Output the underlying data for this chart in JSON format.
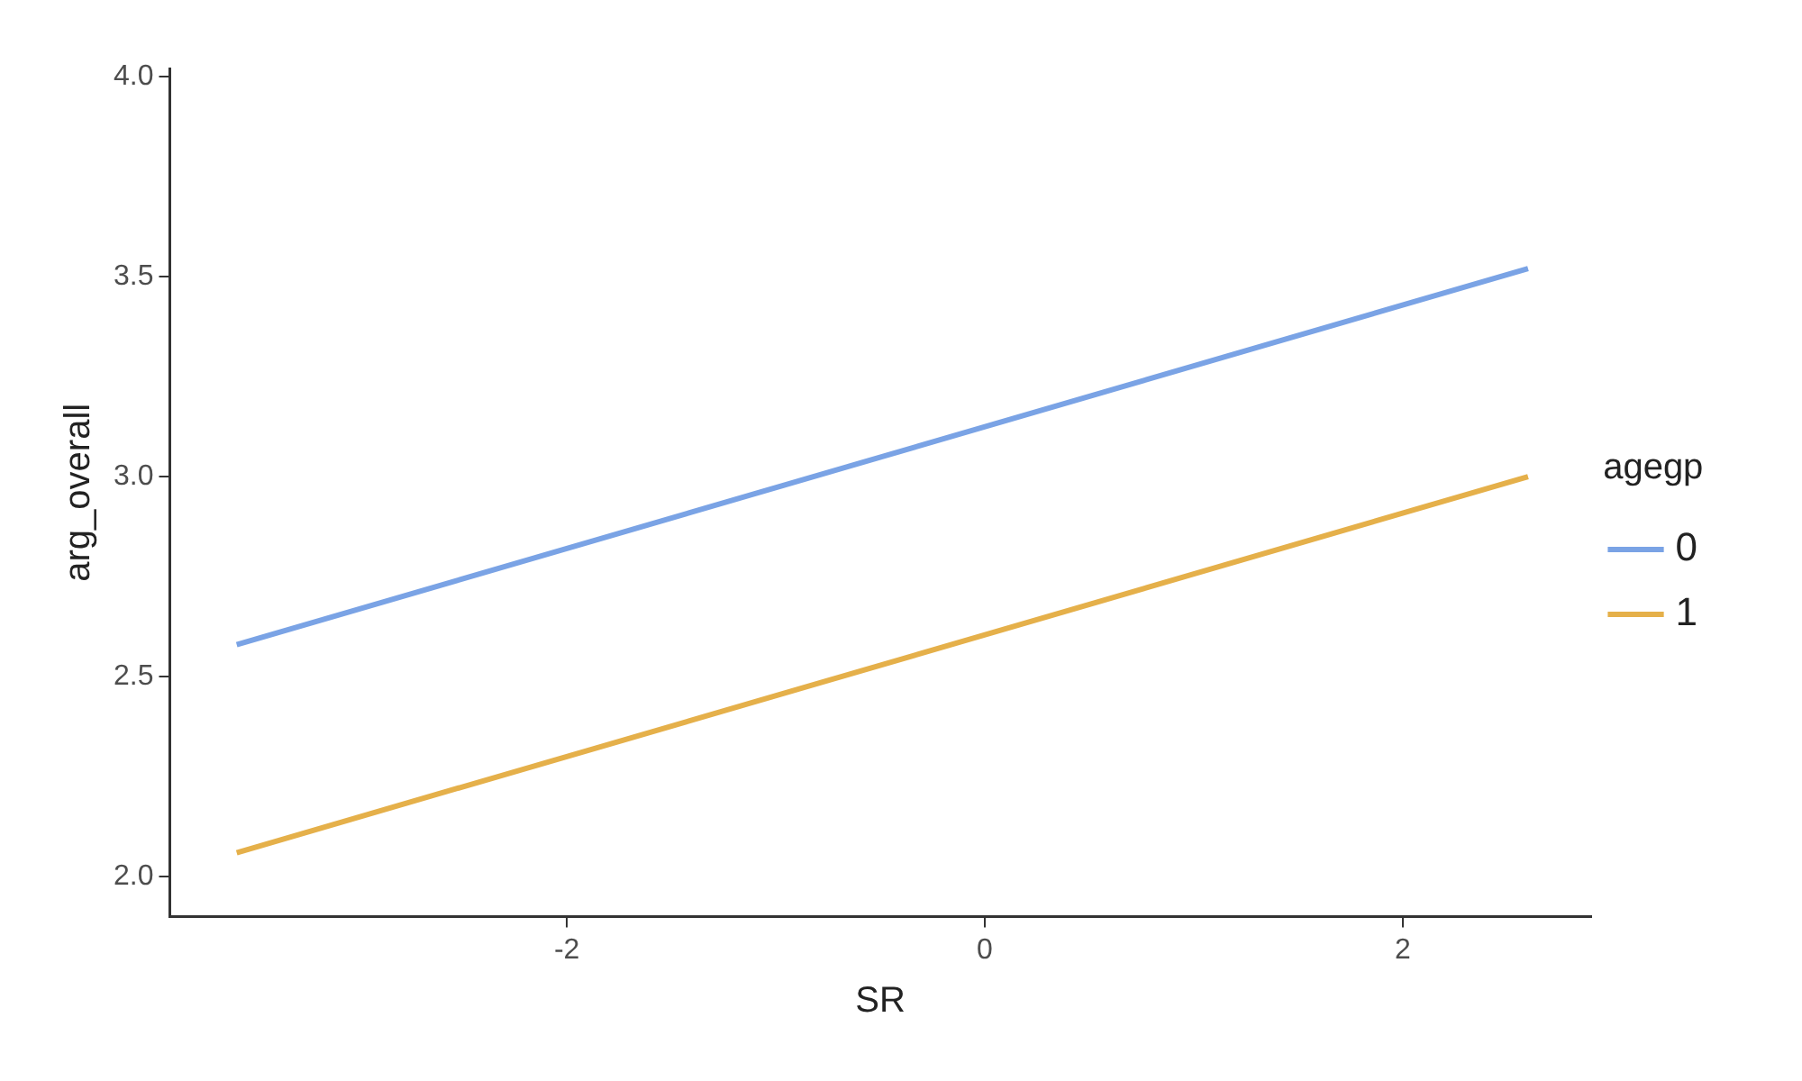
{
  "chart_data": {
    "type": "line",
    "xlabel": "SR",
    "ylabel": "arg_overall",
    "legend_title": "agegp",
    "legend": "right",
    "grid": false,
    "marker": "none",
    "line_style": "solid",
    "xlim": [
      -3.9,
      2.9
    ],
    "xticks": [
      -2,
      0,
      2
    ],
    "ylim": [
      1.9,
      4.02
    ],
    "yticks": [
      {
        "value": 2,
        "label": "2.0"
      },
      {
        "value": 2.5,
        "label": "2.5"
      },
      {
        "value": 3,
        "label": "3.0"
      },
      {
        "value": 3.5,
        "label": "3.5"
      },
      {
        "value": 4,
        "label": "4.0"
      }
    ],
    "x": [
      -3.58,
      2.6
    ],
    "series": [
      {
        "name": "0",
        "color": "#7aa3e5",
        "values": [
          2.58,
          3.52
        ]
      },
      {
        "name": "1",
        "color": "#e5b04a",
        "values": [
          2.06,
          3.0
        ]
      }
    ]
  }
}
